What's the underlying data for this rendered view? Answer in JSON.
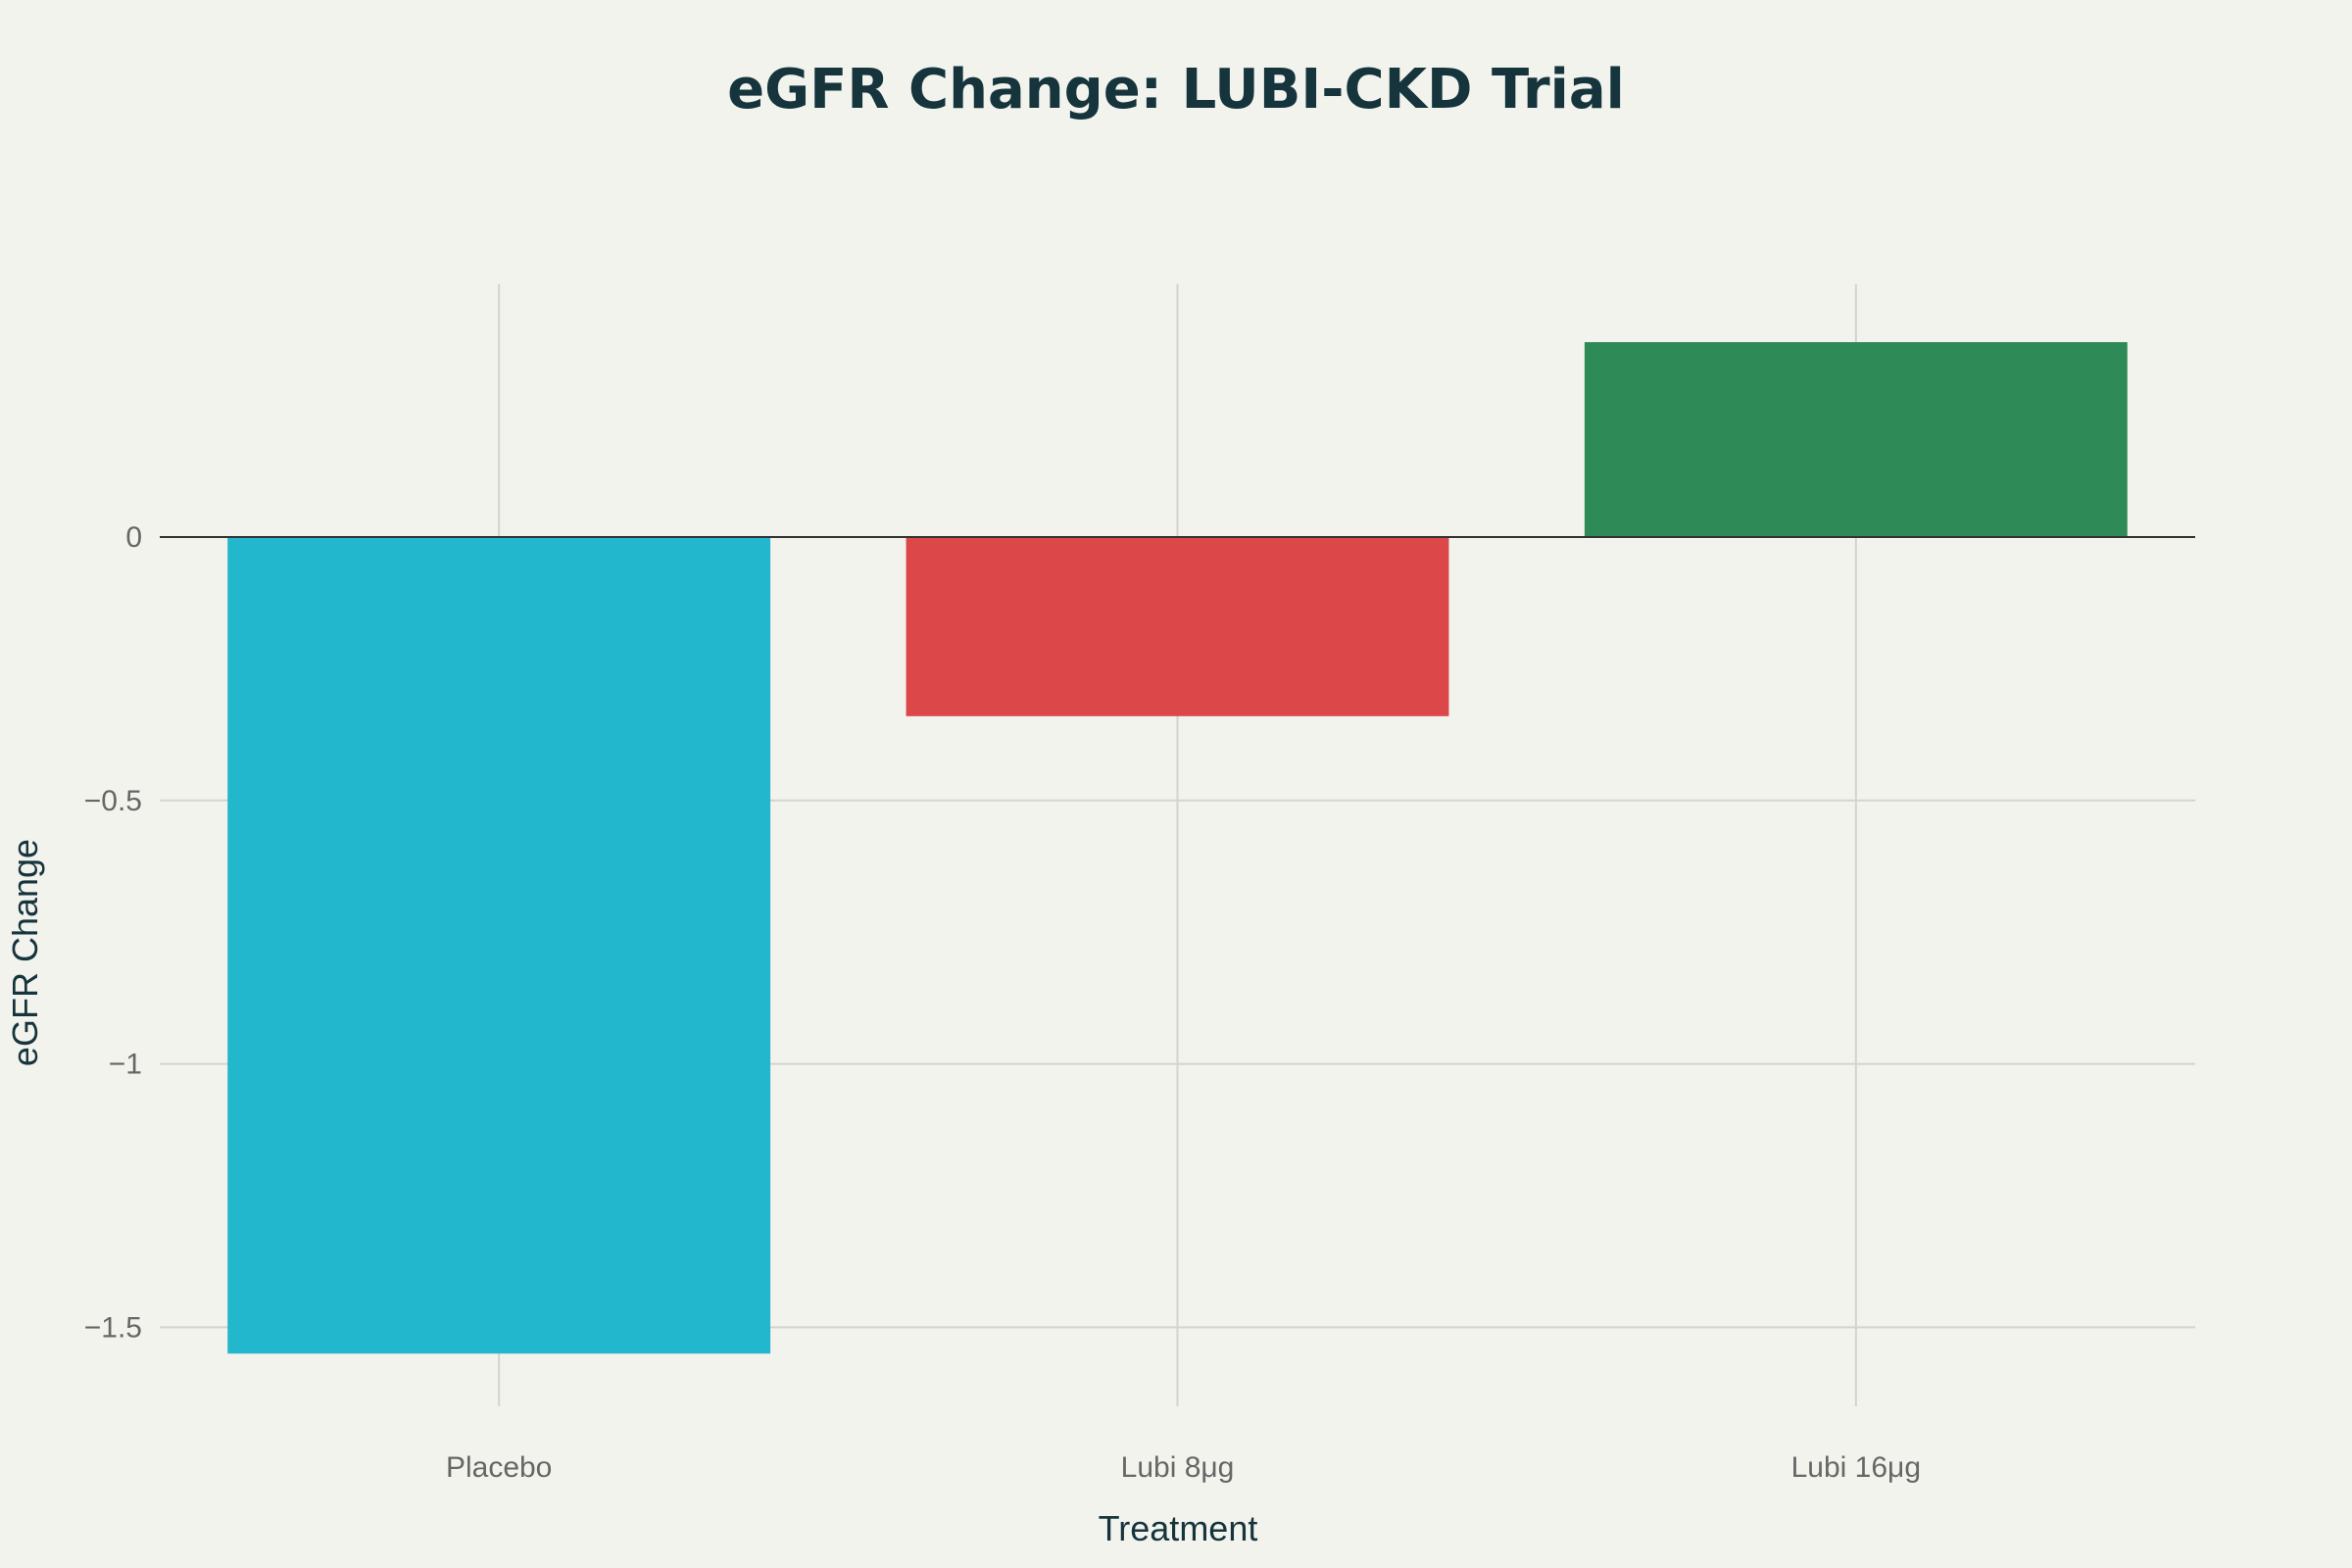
{
  "chart_data": {
    "type": "bar",
    "title": "eGFR Change: LUBI-CKD Trial",
    "xlabel": "Treatment",
    "ylabel": "eGFR Change",
    "categories": [
      "Placebo",
      "Lubi 8μg",
      "Lubi 16μg"
    ],
    "values": [
      -1.55,
      -0.34,
      0.37
    ],
    "colors": [
      "#22b7cd",
      "#dc4749",
      "#2e8b57"
    ],
    "ylim": [
      -1.65,
      0.48
    ],
    "yticks": [
      0,
      -0.5,
      -1,
      -1.5
    ],
    "ytick_labels": [
      "0",
      "−0.5",
      "−1",
      "−1.5"
    ],
    "grid": true,
    "legend": false
  }
}
